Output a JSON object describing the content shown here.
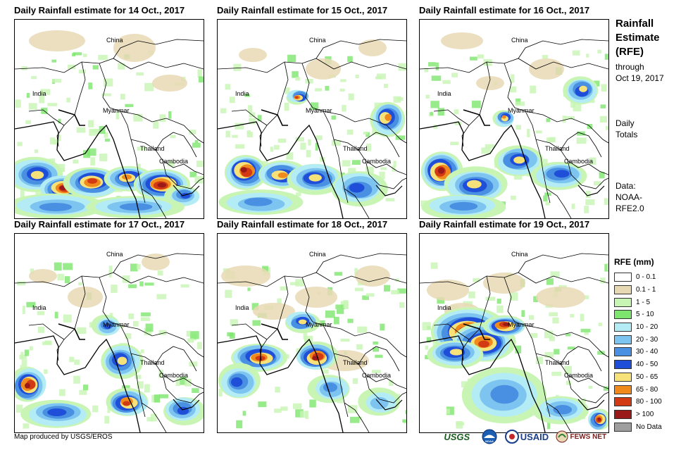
{
  "panels": [
    {
      "title": "Daily Rainfall estimate for 14 Oct., 2017"
    },
    {
      "title": "Daily Rainfall estimate for 15 Oct., 2017"
    },
    {
      "title": "Daily Rainfall estimate for 16 Oct., 2017"
    },
    {
      "title": "Daily Rainfall estimate for 17 Oct., 2017"
    },
    {
      "title": "Daily Rainfall estimate for 18 Oct., 2017"
    },
    {
      "title": "Daily Rainfall estimate for 19 Oct., 2017"
    }
  ],
  "map_labels": {
    "china": "China",
    "india": "India",
    "myanmar": "Myanmar",
    "thailand": "Thailand",
    "cambodia": "Cambodia"
  },
  "sidebar": {
    "title_line1": "Rainfall",
    "title_line2": "Estimate",
    "title_line3": "(RFE)",
    "through": "through",
    "date": "Oct 19, 2017",
    "daily": "Daily",
    "totals": "Totals",
    "data_label": "Data:",
    "data_source1": "NOAA-",
    "data_source2": "RFE2.0"
  },
  "legend": {
    "title": "RFE (mm)",
    "items": [
      {
        "label": "0 - 0.1",
        "color": "#ffffff"
      },
      {
        "label": "0.1 - 1",
        "color": "#e8d9b5"
      },
      {
        "label": "1 - 5",
        "color": "#c8f5b4"
      },
      {
        "label": "5 - 10",
        "color": "#7ee66e"
      },
      {
        "label": "10 - 20",
        "color": "#b4ecf5"
      },
      {
        "label": "20 - 30",
        "color": "#7ec4f0"
      },
      {
        "label": "30 - 40",
        "color": "#4a90e2"
      },
      {
        "label": "40 - 50",
        "color": "#1f4fd8"
      },
      {
        "label": "50 - 65",
        "color": "#f7e27a"
      },
      {
        "label": "65 - 80",
        "color": "#f08a1c"
      },
      {
        "label": "80 - 100",
        "color": "#d23a14"
      },
      {
        "label": "> 100",
        "color": "#9a1a1a"
      },
      {
        "label": "No Data",
        "color": "#9e9e9e"
      }
    ]
  },
  "credit": "Map produced by USGS/EROS",
  "logos": [
    "USGS",
    "NOAA",
    "USAID",
    "FEWS NET"
  ]
}
